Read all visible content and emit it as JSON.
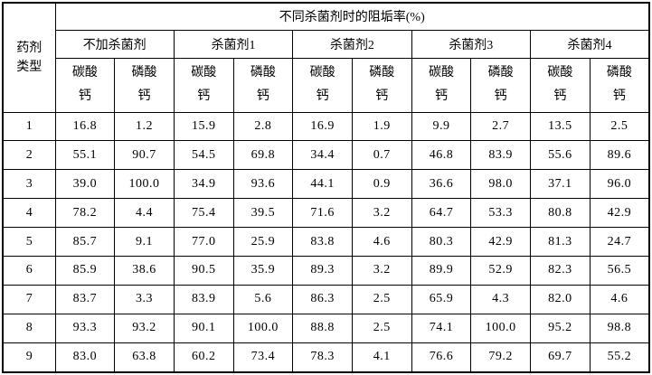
{
  "table": {
    "corner_header_lines": [
      "药剂",
      "类型"
    ],
    "main_header": "不同杀菌剂时的阻垢率(%)",
    "group_headers": [
      "不加杀菌剂",
      "杀菌剂1",
      "杀菌剂2",
      "杀菌剂3",
      "杀菌剂4"
    ],
    "sub_headers": [
      [
        "碳酸",
        "钙"
      ],
      [
        "磷酸",
        "钙"
      ]
    ],
    "rows": [
      {
        "label": "1",
        "values": [
          "16.8",
          "1.2",
          "15.9",
          "2.8",
          "16.9",
          "1.9",
          "9.9",
          "2.7",
          "13.5",
          "2.5"
        ]
      },
      {
        "label": "2",
        "values": [
          "55.1",
          "90.7",
          "54.5",
          "69.8",
          "34.4",
          "0.7",
          "46.8",
          "83.9",
          "55.6",
          "89.6"
        ]
      },
      {
        "label": "3",
        "values": [
          "39.0",
          "100.0",
          "34.9",
          "93.6",
          "44.1",
          "0.9",
          "36.6",
          "98.0",
          "37.1",
          "96.0"
        ]
      },
      {
        "label": "4",
        "values": [
          "78.2",
          "4.4",
          "75.4",
          "39.5",
          "71.6",
          "3.2",
          "64.7",
          "53.3",
          "80.8",
          "42.9"
        ]
      },
      {
        "label": "5",
        "values": [
          "85.7",
          "9.1",
          "77.0",
          "25.9",
          "83.8",
          "4.6",
          "80.3",
          "42.9",
          "81.3",
          "24.7"
        ]
      },
      {
        "label": "6",
        "values": [
          "85.9",
          "38.6",
          "90.5",
          "35.9",
          "89.3",
          "3.2",
          "89.9",
          "52.9",
          "82.3",
          "56.5"
        ]
      },
      {
        "label": "7",
        "values": [
          "83.7",
          "3.3",
          "83.9",
          "5.6",
          "86.3",
          "2.5",
          "65.9",
          "4.3",
          "82.0",
          "4.6"
        ]
      },
      {
        "label": "8",
        "values": [
          "93.3",
          "93.2",
          "90.1",
          "100.0",
          "88.8",
          "2.5",
          "74.1",
          "100.0",
          "95.2",
          "98.8"
        ]
      },
      {
        "label": "9",
        "values": [
          "83.0",
          "63.8",
          "60.2",
          "73.4",
          "78.3",
          "4.1",
          "76.6",
          "79.2",
          "69.7",
          "55.2"
        ]
      }
    ]
  },
  "chart_data": {
    "type": "table",
    "title": "不同杀菌剂时的阻垢率(%)",
    "row_label_header": "药剂类型",
    "column_groups": [
      "不加杀菌剂",
      "杀菌剂1",
      "杀菌剂2",
      "杀菌剂3",
      "杀菌剂4"
    ],
    "sub_columns": [
      "碳酸钙",
      "磷酸钙"
    ],
    "categories": [
      "1",
      "2",
      "3",
      "4",
      "5",
      "6",
      "7",
      "8",
      "9"
    ],
    "series": [
      {
        "name": "不加杀菌剂-碳酸钙",
        "values": [
          16.8,
          55.1,
          39.0,
          78.2,
          85.7,
          85.9,
          83.7,
          93.3,
          83.0
        ]
      },
      {
        "name": "不加杀菌剂-磷酸钙",
        "values": [
          1.2,
          90.7,
          100.0,
          4.4,
          9.1,
          38.6,
          3.3,
          93.2,
          63.8
        ]
      },
      {
        "name": "杀菌剂1-碳酸钙",
        "values": [
          15.9,
          54.5,
          34.9,
          75.4,
          77.0,
          90.5,
          83.9,
          90.1,
          60.2
        ]
      },
      {
        "name": "杀菌剂1-磷酸钙",
        "values": [
          2.8,
          69.8,
          93.6,
          39.5,
          25.9,
          35.9,
          5.6,
          100.0,
          73.4
        ]
      },
      {
        "name": "杀菌剂2-碳酸钙",
        "values": [
          16.9,
          34.4,
          44.1,
          71.6,
          83.8,
          89.3,
          86.3,
          88.8,
          78.3
        ]
      },
      {
        "name": "杀菌剂2-磷酸钙",
        "values": [
          1.9,
          0.7,
          0.9,
          3.2,
          4.6,
          3.2,
          2.5,
          2.5,
          4.1
        ]
      },
      {
        "name": "杀菌剂3-碳酸钙",
        "values": [
          9.9,
          46.8,
          36.6,
          64.7,
          80.3,
          89.9,
          65.9,
          74.1,
          76.6
        ]
      },
      {
        "name": "杀菌剂3-磷酸钙",
        "values": [
          2.7,
          83.9,
          98.0,
          53.3,
          42.9,
          52.9,
          4.3,
          100.0,
          79.2
        ]
      },
      {
        "name": "杀菌剂4-碳酸钙",
        "values": [
          13.5,
          55.6,
          37.1,
          80.8,
          81.3,
          82.3,
          82.0,
          95.2,
          69.7
        ]
      },
      {
        "name": "杀菌剂4-磷酸钙",
        "values": [
          2.5,
          89.6,
          96.0,
          42.9,
          24.7,
          56.5,
          4.6,
          98.8,
          55.2
        ]
      }
    ]
  }
}
